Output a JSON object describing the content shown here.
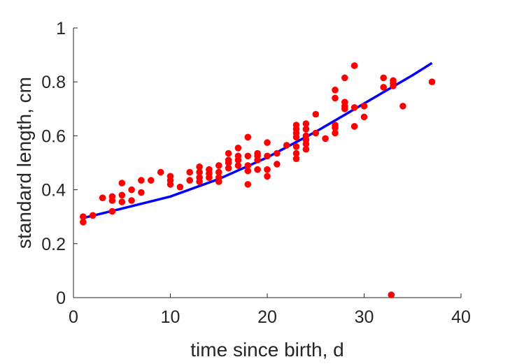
{
  "chart_data": {
    "type": "scatter",
    "title": "",
    "xlabel": "time since birth, d",
    "ylabel": "standard length, cm",
    "xlim": [
      0,
      40
    ],
    "ylim": [
      0,
      1
    ],
    "xticks": [
      0,
      10,
      20,
      30,
      40
    ],
    "yticks": [
      0,
      0.2,
      0.4,
      0.6,
      0.8,
      1
    ],
    "xtick_labels": [
      "0",
      "10",
      "20",
      "30",
      "40"
    ],
    "ytick_labels": [
      "0",
      "0.2",
      "0.4",
      "0.6",
      "0.8",
      "1"
    ],
    "grid": false,
    "legend": "none",
    "series": [
      {
        "kind": "scatter",
        "color": "#ff0000",
        "points": [
          [
            1,
            0.28
          ],
          [
            1,
            0.3
          ],
          [
            2,
            0.305
          ],
          [
            3,
            0.37
          ],
          [
            4,
            0.32
          ],
          [
            4,
            0.36
          ],
          [
            4,
            0.375
          ],
          [
            5,
            0.355
          ],
          [
            5,
            0.38
          ],
          [
            5,
            0.425
          ],
          [
            6,
            0.36
          ],
          [
            6,
            0.4
          ],
          [
            7,
            0.39
          ],
          [
            7,
            0.435
          ],
          [
            8,
            0.435
          ],
          [
            9,
            0.465
          ],
          [
            10,
            0.42
          ],
          [
            10,
            0.435
          ],
          [
            10,
            0.45
          ],
          [
            11,
            0.41
          ],
          [
            12,
            0.435
          ],
          [
            12,
            0.465
          ],
          [
            13,
            0.43
          ],
          [
            13,
            0.445
          ],
          [
            13,
            0.465
          ],
          [
            13,
            0.485
          ],
          [
            14,
            0.445
          ],
          [
            14,
            0.46
          ],
          [
            14,
            0.475
          ],
          [
            15,
            0.43
          ],
          [
            15,
            0.445
          ],
          [
            15,
            0.465
          ],
          [
            15,
            0.49
          ],
          [
            16,
            0.48
          ],
          [
            16,
            0.5
          ],
          [
            16,
            0.51
          ],
          [
            16,
            0.535
          ],
          [
            17,
            0.49
          ],
          [
            17,
            0.51
          ],
          [
            17,
            0.525
          ],
          [
            17,
            0.555
          ],
          [
            18,
            0.42
          ],
          [
            18,
            0.47
          ],
          [
            18,
            0.49
          ],
          [
            18,
            0.525
          ],
          [
            18,
            0.595
          ],
          [
            19,
            0.475
          ],
          [
            19,
            0.51
          ],
          [
            19,
            0.525
          ],
          [
            19,
            0.535
          ],
          [
            20,
            0.45
          ],
          [
            20,
            0.475
          ],
          [
            20,
            0.525
          ],
          [
            20,
            0.575
          ],
          [
            21,
            0.495
          ],
          [
            21,
            0.535
          ],
          [
            22,
            0.565
          ],
          [
            23,
            0.515
          ],
          [
            23,
            0.535
          ],
          [
            23,
            0.56
          ],
          [
            23,
            0.595
          ],
          [
            23,
            0.61
          ],
          [
            23,
            0.625
          ],
          [
            23,
            0.64
          ],
          [
            24,
            0.55
          ],
          [
            24,
            0.57
          ],
          [
            24,
            0.585
          ],
          [
            24,
            0.6
          ],
          [
            24,
            0.625
          ],
          [
            24,
            0.645
          ],
          [
            25,
            0.61
          ],
          [
            25,
            0.68
          ],
          [
            26,
            0.59
          ],
          [
            27,
            0.61
          ],
          [
            27,
            0.63
          ],
          [
            27,
            0.64
          ],
          [
            27,
            0.74
          ],
          [
            27,
            0.77
          ],
          [
            28,
            0.7
          ],
          [
            28,
            0.71
          ],
          [
            28,
            0.725
          ],
          [
            28,
            0.815
          ],
          [
            29,
            0.635
          ],
          [
            29,
            0.705
          ],
          [
            29,
            0.86
          ],
          [
            30,
            0.67
          ],
          [
            30,
            0.71
          ],
          [
            32,
            0.78
          ],
          [
            32,
            0.815
          ],
          [
            32.8,
            0.01
          ],
          [
            33,
            0.785
          ],
          [
            33,
            0.795
          ],
          [
            33,
            0.805
          ],
          [
            34,
            0.71
          ],
          [
            37,
            0.8
          ]
        ]
      },
      {
        "kind": "line",
        "color": "#0000ff",
        "x": [
          1,
          5,
          10,
          15,
          20,
          25,
          30,
          35,
          37
        ],
        "y": [
          0.295,
          0.33,
          0.375,
          0.44,
          0.52,
          0.615,
          0.72,
          0.825,
          0.87
        ]
      }
    ]
  }
}
